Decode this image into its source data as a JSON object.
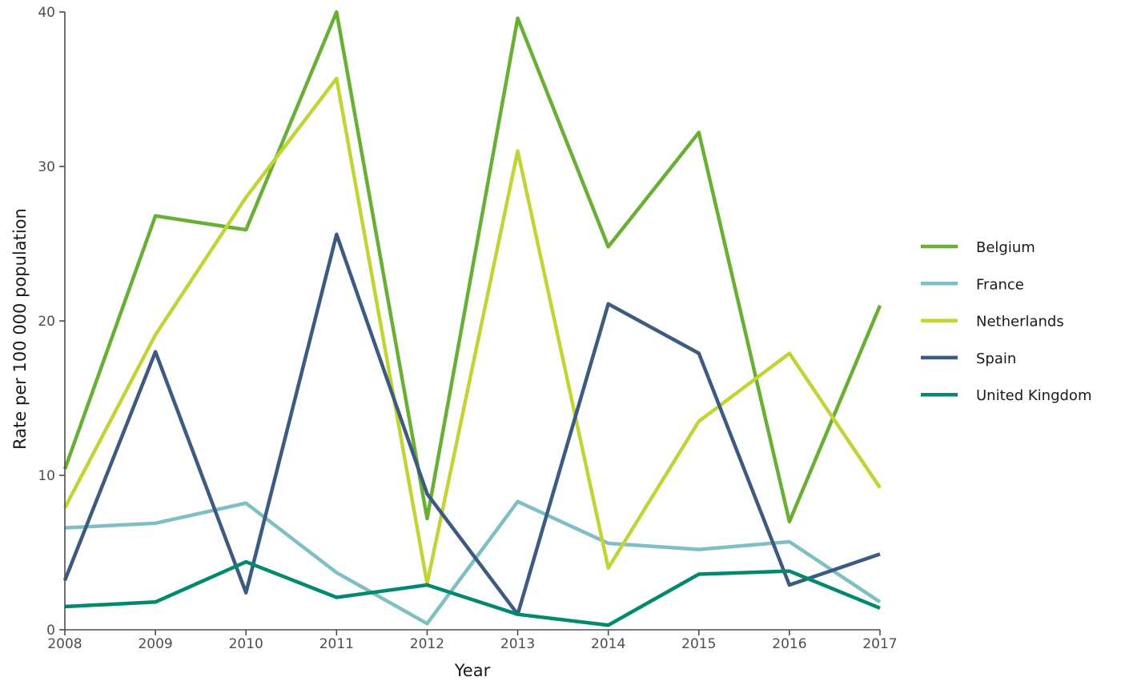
{
  "chart_data": {
    "type": "line",
    "title": "",
    "xlabel": "Year",
    "ylabel": "Rate per 100 000 population",
    "x": [
      2008,
      2009,
      2010,
      2011,
      2012,
      2013,
      2014,
      2015,
      2016,
      2017
    ],
    "xlim": [
      2008,
      2017
    ],
    "ylim": [
      0,
      40
    ],
    "yticks": [
      0,
      10,
      20,
      30,
      40
    ],
    "grid": false,
    "legend_position": "right",
    "series": [
      {
        "name": "Belgium",
        "color": "#6aaf35",
        "values": [
          10.4,
          26.8,
          25.9,
          40.0,
          7.2,
          39.6,
          24.8,
          32.2,
          7.0,
          21.0
        ]
      },
      {
        "name": "France",
        "color": "#7fbec4",
        "values": [
          6.6,
          6.9,
          8.2,
          3.7,
          0.4,
          8.3,
          5.6,
          5.2,
          5.7,
          1.8
        ]
      },
      {
        "name": "Netherlands",
        "color": "#c2d435",
        "values": [
          7.9,
          19.1,
          28.0,
          35.7,
          3.0,
          31.0,
          4.0,
          13.5,
          17.9,
          9.2
        ]
      },
      {
        "name": "Spain",
        "color": "#3d5a80",
        "values": [
          3.2,
          18.0,
          2.4,
          25.6,
          8.8,
          1.0,
          21.1,
          17.9,
          2.9,
          4.9
        ]
      },
      {
        "name": "United Kingdom",
        "color": "#00896e",
        "values": [
          1.5,
          1.8,
          4.4,
          2.1,
          2.9,
          1.0,
          0.3,
          3.6,
          3.8,
          1.4
        ]
      }
    ]
  }
}
